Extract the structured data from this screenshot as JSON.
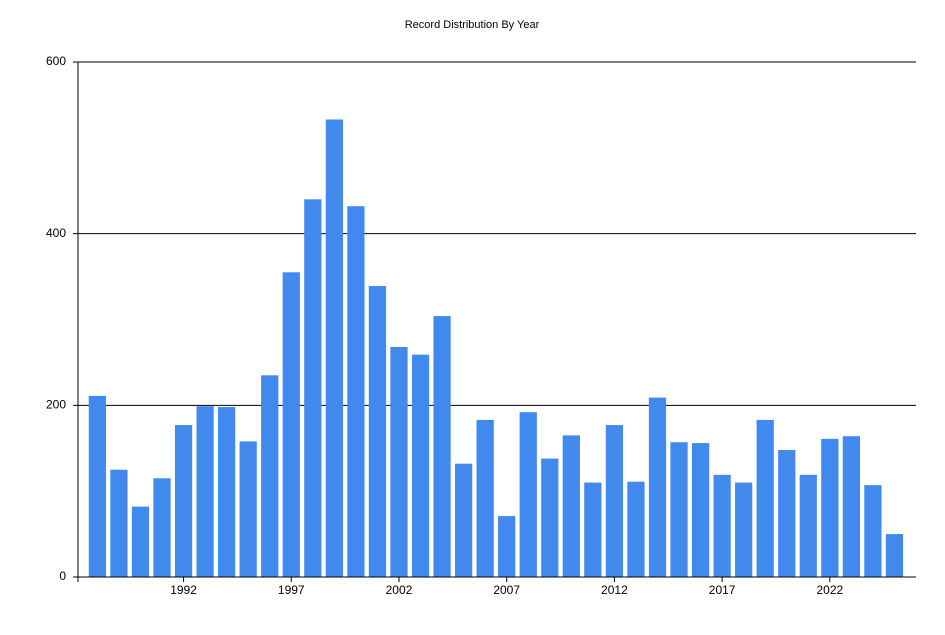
{
  "chart_data": {
    "type": "bar",
    "title": "Record Distribution By Year",
    "x": [
      1988,
      1989,
      1990,
      1991,
      1992,
      1993,
      1994,
      1995,
      1996,
      1997,
      1998,
      1999,
      2000,
      2001,
      2002,
      2003,
      2004,
      2005,
      2006,
      2007,
      2008,
      2009,
      2010,
      2011,
      2012,
      2013,
      2014,
      2015,
      2016,
      2017,
      2018,
      2019,
      2020,
      2021,
      2022,
      2023,
      2024,
      2025
    ],
    "values": [
      211,
      125,
      82,
      115,
      177,
      199,
      198,
      158,
      235,
      355,
      440,
      533,
      432,
      339,
      268,
      259,
      304,
      132,
      183,
      71,
      192,
      138,
      165,
      110,
      177,
      111,
      209,
      157,
      156,
      119,
      110,
      183,
      148,
      119,
      161,
      164,
      107,
      50
    ],
    "color": "#4189ec",
    "xlim": [
      1987.1,
      2026
    ],
    "xticks": [
      1992,
      1997,
      2002,
      2007,
      2012,
      2017,
      2022
    ],
    "ylim": [
      0,
      600
    ],
    "yticks": [
      0,
      200,
      400,
      600
    ],
    "grid": true
  }
}
